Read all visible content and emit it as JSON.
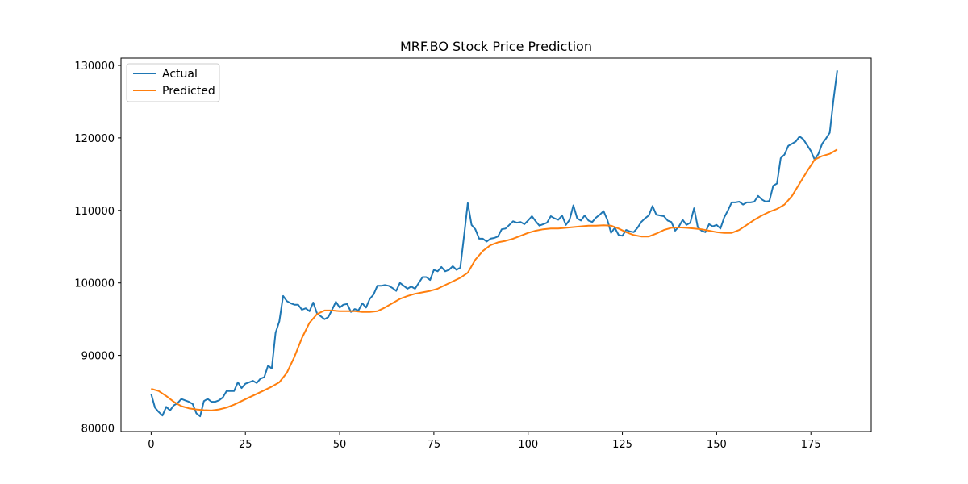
{
  "chart_data": {
    "type": "line",
    "title": "MRF.BO Stock Price Prediction",
    "xlabel": "",
    "ylabel": "",
    "xlim": [
      -8,
      191
    ],
    "ylim": [
      79500,
      131000
    ],
    "xticks": [
      0,
      25,
      50,
      75,
      100,
      125,
      150,
      175
    ],
    "yticks": [
      80000,
      90000,
      100000,
      110000,
      120000,
      130000
    ],
    "grid": false,
    "legend_position": "top-left",
    "series": [
      {
        "name": "Actual",
        "color": "#1f77b4",
        "points": [
          [
            0,
            84700
          ],
          [
            1,
            82800
          ],
          [
            2,
            82200
          ],
          [
            3,
            81700
          ],
          [
            4,
            82900
          ],
          [
            5,
            82400
          ],
          [
            6,
            83100
          ],
          [
            7,
            83400
          ],
          [
            8,
            84000
          ],
          [
            9,
            83800
          ],
          [
            10,
            83600
          ],
          [
            11,
            83300
          ],
          [
            12,
            82000
          ],
          [
            13,
            81600
          ],
          [
            14,
            83700
          ],
          [
            15,
            84000
          ],
          [
            16,
            83600
          ],
          [
            17,
            83600
          ],
          [
            18,
            83800
          ],
          [
            19,
            84200
          ],
          [
            20,
            85100
          ],
          [
            21,
            85100
          ],
          [
            22,
            85100
          ],
          [
            23,
            86300
          ],
          [
            24,
            85500
          ],
          [
            25,
            86100
          ],
          [
            26,
            86300
          ],
          [
            27,
            86500
          ],
          [
            28,
            86200
          ],
          [
            29,
            86800
          ],
          [
            30,
            87000
          ],
          [
            31,
            88600
          ],
          [
            32,
            88200
          ],
          [
            33,
            93100
          ],
          [
            34,
            94700
          ],
          [
            35,
            98200
          ],
          [
            36,
            97500
          ],
          [
            37,
            97200
          ],
          [
            38,
            97000
          ],
          [
            39,
            97000
          ],
          [
            40,
            96300
          ],
          [
            41,
            96500
          ],
          [
            42,
            96100
          ],
          [
            43,
            97300
          ],
          [
            44,
            95800
          ],
          [
            45,
            95400
          ],
          [
            46,
            95000
          ],
          [
            47,
            95300
          ],
          [
            48,
            96300
          ],
          [
            49,
            97400
          ],
          [
            50,
            96600
          ],
          [
            51,
            97000
          ],
          [
            52,
            97100
          ],
          [
            53,
            96000
          ],
          [
            54,
            96400
          ],
          [
            55,
            96200
          ],
          [
            56,
            97200
          ],
          [
            57,
            96600
          ],
          [
            58,
            97800
          ],
          [
            59,
            98400
          ],
          [
            60,
            99600
          ],
          [
            61,
            99600
          ],
          [
            62,
            99700
          ],
          [
            63,
            99600
          ],
          [
            64,
            99300
          ],
          [
            65,
            98900
          ],
          [
            66,
            100000
          ],
          [
            67,
            99600
          ],
          [
            68,
            99200
          ],
          [
            69,
            99500
          ],
          [
            70,
            99200
          ],
          [
            71,
            100000
          ],
          [
            72,
            100800
          ],
          [
            73,
            100800
          ],
          [
            74,
            100400
          ],
          [
            75,
            101800
          ],
          [
            76,
            101600
          ],
          [
            77,
            102200
          ],
          [
            78,
            101600
          ],
          [
            79,
            101800
          ],
          [
            80,
            102300
          ],
          [
            81,
            101800
          ],
          [
            82,
            102100
          ],
          [
            83,
            106500
          ],
          [
            84,
            111000
          ],
          [
            85,
            108000
          ],
          [
            86,
            107400
          ],
          [
            87,
            106100
          ],
          [
            88,
            106100
          ],
          [
            89,
            105700
          ],
          [
            90,
            106100
          ],
          [
            91,
            106200
          ],
          [
            92,
            106400
          ],
          [
            93,
            107400
          ],
          [
            94,
            107500
          ],
          [
            95,
            108000
          ],
          [
            96,
            108500
          ],
          [
            97,
            108300
          ],
          [
            98,
            108400
          ],
          [
            99,
            108100
          ],
          [
            100,
            108600
          ],
          [
            101,
            109200
          ],
          [
            102,
            108500
          ],
          [
            103,
            107900
          ],
          [
            104,
            108100
          ],
          [
            105,
            108300
          ],
          [
            106,
            109200
          ],
          [
            107,
            108900
          ],
          [
            108,
            108700
          ],
          [
            109,
            109300
          ],
          [
            110,
            108000
          ],
          [
            111,
            108700
          ],
          [
            112,
            110700
          ],
          [
            113,
            108900
          ],
          [
            114,
            108600
          ],
          [
            115,
            109300
          ],
          [
            116,
            108600
          ],
          [
            117,
            108400
          ],
          [
            118,
            109000
          ],
          [
            119,
            109400
          ],
          [
            120,
            109900
          ],
          [
            121,
            108700
          ],
          [
            122,
            106900
          ],
          [
            123,
            107600
          ],
          [
            124,
            106600
          ],
          [
            125,
            106500
          ],
          [
            126,
            107300
          ],
          [
            127,
            107100
          ],
          [
            128,
            107000
          ],
          [
            129,
            107600
          ],
          [
            130,
            108400
          ],
          [
            131,
            108900
          ],
          [
            132,
            109300
          ],
          [
            133,
            110600
          ],
          [
            134,
            109400
          ],
          [
            135,
            109300
          ],
          [
            136,
            109200
          ],
          [
            137,
            108600
          ],
          [
            138,
            108400
          ],
          [
            139,
            107200
          ],
          [
            140,
            107800
          ],
          [
            141,
            108700
          ],
          [
            142,
            108000
          ],
          [
            143,
            108300
          ],
          [
            144,
            110300
          ],
          [
            145,
            107700
          ],
          [
            146,
            107200
          ],
          [
            147,
            107000
          ],
          [
            148,
            108100
          ],
          [
            149,
            107800
          ],
          [
            150,
            108000
          ],
          [
            151,
            107500
          ],
          [
            152,
            109000
          ],
          [
            153,
            110000
          ],
          [
            154,
            111100
          ],
          [
            155,
            111100
          ],
          [
            156,
            111200
          ],
          [
            157,
            110800
          ],
          [
            158,
            111100
          ],
          [
            159,
            111100
          ],
          [
            160,
            111200
          ],
          [
            161,
            112000
          ],
          [
            162,
            111500
          ],
          [
            163,
            111200
          ],
          [
            164,
            111300
          ],
          [
            165,
            113400
          ],
          [
            166,
            113700
          ],
          [
            167,
            117200
          ],
          [
            168,
            117700
          ],
          [
            169,
            118900
          ],
          [
            170,
            119200
          ],
          [
            171,
            119500
          ],
          [
            172,
            120200
          ],
          [
            173,
            119800
          ],
          [
            174,
            119000
          ],
          [
            175,
            118200
          ],
          [
            176,
            117000
          ],
          [
            177,
            117800
          ],
          [
            178,
            119200
          ],
          [
            179,
            119900
          ],
          [
            180,
            120700
          ],
          [
            181,
            125300
          ],
          [
            182,
            129300
          ]
        ]
      },
      {
        "name": "Predicted",
        "color": "#ff7f0e",
        "points": [
          [
            0,
            85400
          ],
          [
            2,
            85100
          ],
          [
            4,
            84400
          ],
          [
            6,
            83600
          ],
          [
            8,
            83000
          ],
          [
            10,
            82700
          ],
          [
            12,
            82550
          ],
          [
            14,
            82450
          ],
          [
            16,
            82400
          ],
          [
            18,
            82550
          ],
          [
            20,
            82800
          ],
          [
            22,
            83200
          ],
          [
            24,
            83700
          ],
          [
            26,
            84200
          ],
          [
            28,
            84700
          ],
          [
            30,
            85200
          ],
          [
            32,
            85700
          ],
          [
            34,
            86300
          ],
          [
            36,
            87600
          ],
          [
            38,
            89800
          ],
          [
            40,
            92400
          ],
          [
            42,
            94500
          ],
          [
            44,
            95700
          ],
          [
            46,
            96200
          ],
          [
            48,
            96200
          ],
          [
            50,
            96100
          ],
          [
            52,
            96100
          ],
          [
            54,
            96100
          ],
          [
            56,
            96000
          ],
          [
            58,
            96000
          ],
          [
            60,
            96100
          ],
          [
            62,
            96600
          ],
          [
            64,
            97200
          ],
          [
            66,
            97800
          ],
          [
            68,
            98200
          ],
          [
            70,
            98500
          ],
          [
            72,
            98700
          ],
          [
            74,
            98900
          ],
          [
            76,
            99200
          ],
          [
            78,
            99700
          ],
          [
            80,
            100200
          ],
          [
            82,
            100700
          ],
          [
            84,
            101400
          ],
          [
            86,
            103200
          ],
          [
            88,
            104400
          ],
          [
            90,
            105200
          ],
          [
            92,
            105600
          ],
          [
            94,
            105800
          ],
          [
            96,
            106100
          ],
          [
            98,
            106500
          ],
          [
            100,
            106900
          ],
          [
            102,
            107200
          ],
          [
            104,
            107400
          ],
          [
            106,
            107500
          ],
          [
            108,
            107500
          ],
          [
            110,
            107600
          ],
          [
            112,
            107700
          ],
          [
            114,
            107800
          ],
          [
            116,
            107900
          ],
          [
            118,
            107900
          ],
          [
            120,
            107950
          ],
          [
            122,
            107900
          ],
          [
            124,
            107500
          ],
          [
            126,
            107000
          ],
          [
            128,
            106600
          ],
          [
            130,
            106400
          ],
          [
            132,
            106400
          ],
          [
            134,
            106800
          ],
          [
            136,
            107300
          ],
          [
            138,
            107600
          ],
          [
            140,
            107650
          ],
          [
            142,
            107600
          ],
          [
            144,
            107500
          ],
          [
            146,
            107400
          ],
          [
            148,
            107200
          ],
          [
            150,
            107000
          ],
          [
            152,
            106900
          ],
          [
            154,
            106900
          ],
          [
            156,
            107300
          ],
          [
            158,
            108000
          ],
          [
            160,
            108700
          ],
          [
            162,
            109300
          ],
          [
            164,
            109800
          ],
          [
            166,
            110200
          ],
          [
            168,
            110800
          ],
          [
            170,
            112000
          ],
          [
            172,
            113700
          ],
          [
            174,
            115400
          ],
          [
            176,
            117000
          ],
          [
            178,
            117500
          ],
          [
            180,
            117800
          ],
          [
            182,
            118400
          ]
        ]
      }
    ]
  }
}
